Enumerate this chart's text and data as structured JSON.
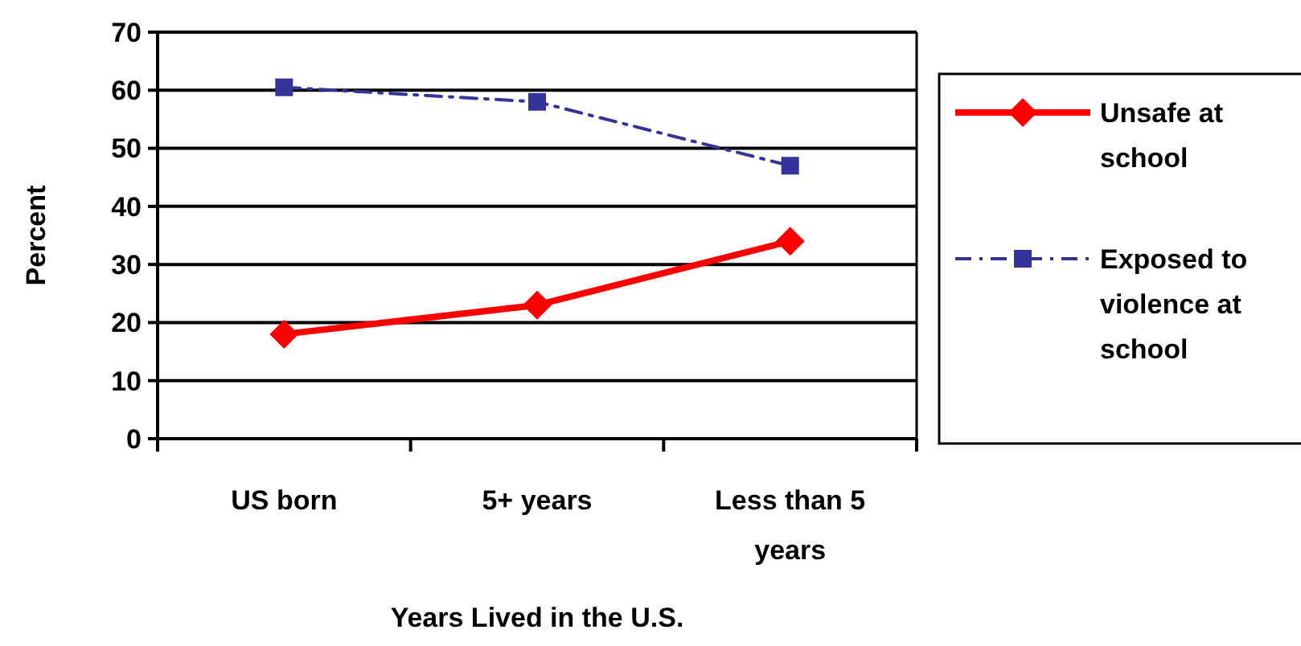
{
  "chart_data": {
    "type": "line",
    "xlabel": "Years Lived in the U.S.",
    "ylabel": "Percent",
    "categories": [
      "US born",
      "5+ years",
      "Less than 5 years"
    ],
    "series": [
      {
        "name": "Unsafe at school",
        "color": "#ff0000",
        "values": [
          18,
          23,
          34
        ],
        "marker": "diamond",
        "line_style": "solid"
      },
      {
        "name": "Exposed to violence at school",
        "color": "#333399",
        "values": [
          60.5,
          58,
          47
        ],
        "marker": "square",
        "line_style": "dashdot"
      }
    ],
    "ylim": [
      0,
      70
    ],
    "yticks": [
      0,
      10,
      20,
      30,
      40,
      50,
      60,
      70
    ],
    "grid": "y",
    "legend": "right"
  }
}
